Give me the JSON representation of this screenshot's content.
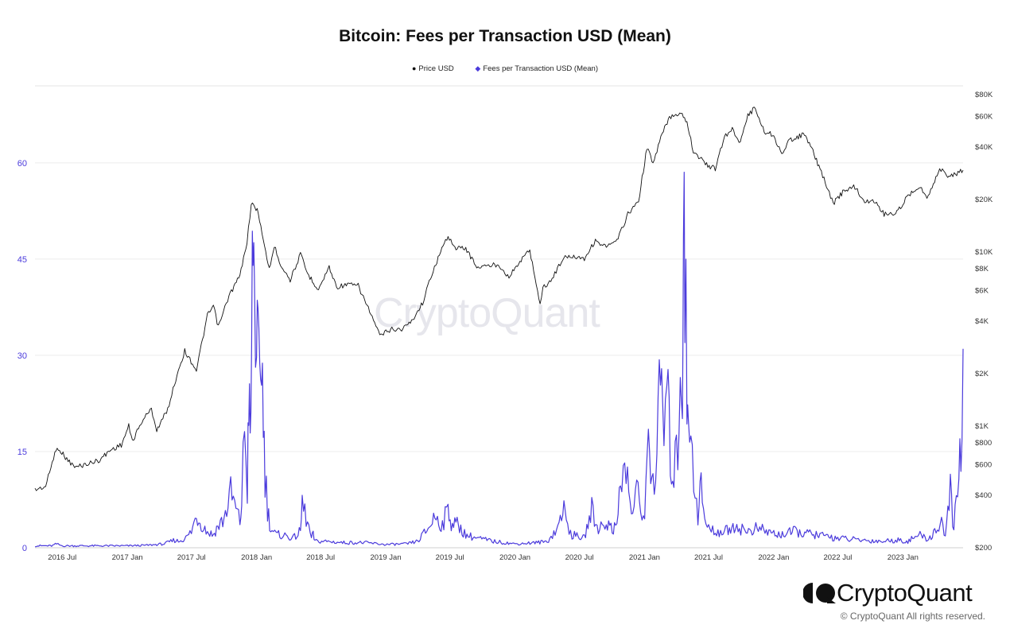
{
  "chart_data": {
    "type": "line",
    "title": "Bitcoin: Fees per Transaction USD (Mean)",
    "legend": [
      {
        "name": "Price USD",
        "color": "#111111"
      },
      {
        "name": "Fees per Transaction USD (Mean)",
        "color": "#4b3bdc"
      }
    ],
    "legend_placement": "top-center",
    "grid": true,
    "x_range": [
      "2016-04-15",
      "2023-06-20"
    ],
    "x_ticks": [
      "2016 Jul",
      "2017 Jan",
      "2017 Jul",
      "2018 Jan",
      "2018 Jul",
      "2019 Jan",
      "2019 Jul",
      "2020 Jan",
      "2020 Jul",
      "2021 Jan",
      "2021 Jul",
      "2022 Jan",
      "2022 Jul",
      "2023 Jan"
    ],
    "y_left": {
      "ticks": [
        "0",
        "15",
        "30",
        "45",
        "60"
      ],
      "ylim": [
        0,
        72
      ],
      "color": "#4b3bdc"
    },
    "y_right": {
      "scale": "log",
      "ticks": [
        "$200",
        "$400",
        "$600",
        "$800",
        "$1K",
        "$2K",
        "$4K",
        "$6K",
        "$8K",
        "$10K",
        "$20K",
        "$40K",
        "$60K",
        "$80K"
      ],
      "ylim": [
        200,
        90000
      ]
    },
    "series": [
      {
        "name": "Price USD",
        "axis": "right",
        "color": "#111111",
        "x": [
          "2016-04-15",
          "2016-05-15",
          "2016-06-10",
          "2016-06-20",
          "2016-07-10",
          "2016-08-05",
          "2016-09-15",
          "2016-10-15",
          "2016-11-15",
          "2016-12-15",
          "2017-01-05",
          "2017-01-15",
          "2017-02-15",
          "2017-03-10",
          "2017-03-25",
          "2017-04-25",
          "2017-05-25",
          "2017-06-12",
          "2017-07-15",
          "2017-08-15",
          "2017-09-01",
          "2017-09-15",
          "2017-10-15",
          "2017-11-15",
          "2017-12-05",
          "2017-12-17",
          "2018-01-06",
          "2018-01-20",
          "2018-02-06",
          "2018-02-20",
          "2018-03-10",
          "2018-04-06",
          "2018-05-05",
          "2018-05-25",
          "2018-06-25",
          "2018-07-25",
          "2018-08-15",
          "2018-09-15",
          "2018-10-15",
          "2018-11-20",
          "2018-12-15",
          "2019-01-15",
          "2019-02-15",
          "2019-03-15",
          "2019-04-15",
          "2019-05-15",
          "2019-06-26",
          "2019-07-15",
          "2019-08-15",
          "2019-09-15",
          "2019-10-15",
          "2019-11-15",
          "2019-12-15",
          "2020-01-15",
          "2020-02-12",
          "2020-03-12",
          "2020-03-20",
          "2020-04-15",
          "2020-05-15",
          "2020-06-15",
          "2020-07-15",
          "2020-08-15",
          "2020-09-15",
          "2020-10-15",
          "2020-11-15",
          "2020-12-15",
          "2021-01-08",
          "2021-01-25",
          "2021-02-20",
          "2021-03-13",
          "2021-04-14",
          "2021-05-01",
          "2021-05-19",
          "2021-06-22",
          "2021-07-20",
          "2021-08-15",
          "2021-09-06",
          "2021-09-25",
          "2021-10-20",
          "2021-11-10",
          "2021-12-05",
          "2022-01-01",
          "2022-01-24",
          "2022-02-15",
          "2022-03-29",
          "2022-04-15",
          "2022-05-12",
          "2022-06-18",
          "2022-07-15",
          "2022-08-15",
          "2022-09-15",
          "2022-10-15",
          "2022-11-09",
          "2022-12-15",
          "2023-01-15",
          "2023-02-15",
          "2023-03-10",
          "2023-04-15",
          "2023-05-15",
          "2023-06-20"
        ],
        "y": [
          430,
          450,
          700,
          750,
          660,
          580,
          610,
          640,
          730,
          780,
          1000,
          820,
          1100,
          1250,
          950,
          1250,
          2100,
          2700,
          2100,
          4300,
          4900,
          3700,
          5600,
          7300,
          11500,
          19000,
          17000,
          11500,
          8000,
          10800,
          8500,
          6900,
          9700,
          7500,
          6100,
          8200,
          6300,
          6500,
          6400,
          4400,
          3300,
          3600,
          3600,
          4000,
          5100,
          7900,
          12500,
          10500,
          10500,
          8200,
          8300,
          8500,
          7200,
          8800,
          10300,
          5000,
          6200,
          7000,
          9200,
          9500,
          9200,
          11600,
          10700,
          11500,
          16500,
          19500,
          40000,
          32000,
          48000,
          59500,
          63500,
          56000,
          38000,
          32000,
          30000,
          46000,
          51000,
          42000,
          61000,
          67500,
          49000,
          47000,
          36000,
          44000,
          47500,
          40500,
          30000,
          19000,
          22000,
          24000,
          19500,
          19500,
          16500,
          16800,
          21000,
          24000,
          20500,
          30000,
          27000,
          29500
        ]
      },
      {
        "name": "Fees per Transaction USD (Mean)",
        "axis": "left",
        "color": "#4b3bdc",
        "x": [
          "2016-04-15",
          "2016-06-01",
          "2016-06-15",
          "2016-07-01",
          "2016-10-01",
          "2017-01-01",
          "2017-03-01",
          "2017-04-15",
          "2017-05-15",
          "2017-05-25",
          "2017-06-15",
          "2017-07-01",
          "2017-07-15",
          "2017-08-01",
          "2017-08-15",
          "2017-09-01",
          "2017-09-10",
          "2017-10-01",
          "2017-10-20",
          "2017-11-15",
          "2017-11-20",
          "2017-11-28",
          "2017-12-06",
          "2017-12-10",
          "2017-12-14",
          "2017-12-18",
          "2017-12-22",
          "2017-12-26",
          "2018-01-01",
          "2018-01-05",
          "2018-01-10",
          "2018-01-15",
          "2018-01-20",
          "2018-01-25",
          "2018-02-01",
          "2018-02-10",
          "2018-02-25",
          "2018-03-15",
          "2018-04-15",
          "2018-05-05",
          "2018-05-10",
          "2018-06-05",
          "2018-06-10",
          "2018-06-15",
          "2018-07-15",
          "2018-09-01",
          "2018-11-01",
          "2019-01-01",
          "2019-03-01",
          "2019-04-01",
          "2019-05-01",
          "2019-05-20",
          "2019-06-10",
          "2019-06-26",
          "2019-07-05",
          "2019-07-25",
          "2019-08-15",
          "2019-09-15",
          "2019-11-01",
          "2020-01-01",
          "2020-03-01",
          "2020-04-01",
          "2020-05-01",
          "2020-05-15",
          "2020-05-25",
          "2020-06-10",
          "2020-07-15",
          "2020-08-05",
          "2020-08-20",
          "2020-09-15",
          "2020-10-05",
          "2020-10-25",
          "2020-11-10",
          "2020-11-25",
          "2020-12-10",
          "2020-12-25",
          "2021-01-05",
          "2021-01-12",
          "2021-01-25",
          "2021-02-05",
          "2021-02-15",
          "2021-02-25",
          "2021-03-05",
          "2021-03-15",
          "2021-03-25",
          "2021-04-05",
          "2021-04-12",
          "2021-04-18",
          "2021-04-21",
          "2021-04-25",
          "2021-05-01",
          "2021-05-05",
          "2021-05-12",
          "2021-05-20",
          "2021-06-01",
          "2021-06-10",
          "2021-06-20",
          "2021-07-01",
          "2021-07-20",
          "2021-08-15",
          "2021-09-15",
          "2021-10-15",
          "2021-11-15",
          "2021-12-15",
          "2022-01-15",
          "2022-03-01",
          "2022-05-01",
          "2022-07-01",
          "2022-09-01",
          "2022-11-01",
          "2022-12-15",
          "2023-01-15",
          "2023-02-15",
          "2023-03-15",
          "2023-04-01",
          "2023-04-20",
          "2023-05-01",
          "2023-05-08",
          "2023-05-15",
          "2023-05-25",
          "2023-06-01",
          "2023-06-08",
          "2023-06-14",
          "2023-06-20"
        ],
        "y": [
          0.3,
          0.3,
          0.6,
          0.3,
          0.3,
          0.3,
          0.4,
          0.6,
          1.2,
          1.0,
          1.5,
          2.5,
          5.0,
          3.5,
          2.5,
          2.0,
          3.0,
          4.5,
          8.5,
          4.0,
          7.0,
          19.0,
          9.0,
          25.0,
          15.0,
          30.0,
          50.0,
          40.0,
          33.0,
          28.0,
          25.0,
          32.0,
          20.0,
          12.0,
          6.0,
          3.0,
          2.0,
          2.0,
          1.5,
          2.5,
          7.0,
          1.5,
          2.0,
          1.0,
          1.0,
          0.8,
          0.8,
          0.5,
          0.6,
          1.0,
          3.0,
          5.0,
          3.5,
          6.0,
          4.0,
          3.5,
          2.0,
          1.5,
          1.0,
          0.6,
          0.8,
          1.0,
          3.0,
          6.5,
          4.0,
          2.0,
          1.5,
          6.0,
          3.0,
          4.0,
          2.5,
          8.5,
          13.0,
          5.0,
          9.0,
          4.5,
          8.0,
          18.0,
          10.0,
          13.0,
          28.0,
          18.0,
          24.0,
          15.0,
          11.0,
          16.0,
          31.0,
          20.0,
          63.0,
          45.0,
          25.0,
          16.0,
          20.0,
          12.0,
          5.0,
          10.0,
          4.0,
          3.0,
          2.5,
          2.5,
          3.5,
          2.5,
          3.0,
          2.5,
          2.0,
          2.5,
          2.0,
          1.5,
          1.2,
          1.0,
          1.2,
          1.0,
          2.0,
          1.3,
          2.5,
          4.0,
          2.0,
          5.0,
          8.5,
          3.0,
          8.0,
          9.0,
          18.0,
          31.0
        ]
      }
    ]
  },
  "watermark": "CryptoQuant",
  "brand": {
    "name": "CryptoQuant",
    "copyright": "© CryptoQuant All rights reserved."
  }
}
